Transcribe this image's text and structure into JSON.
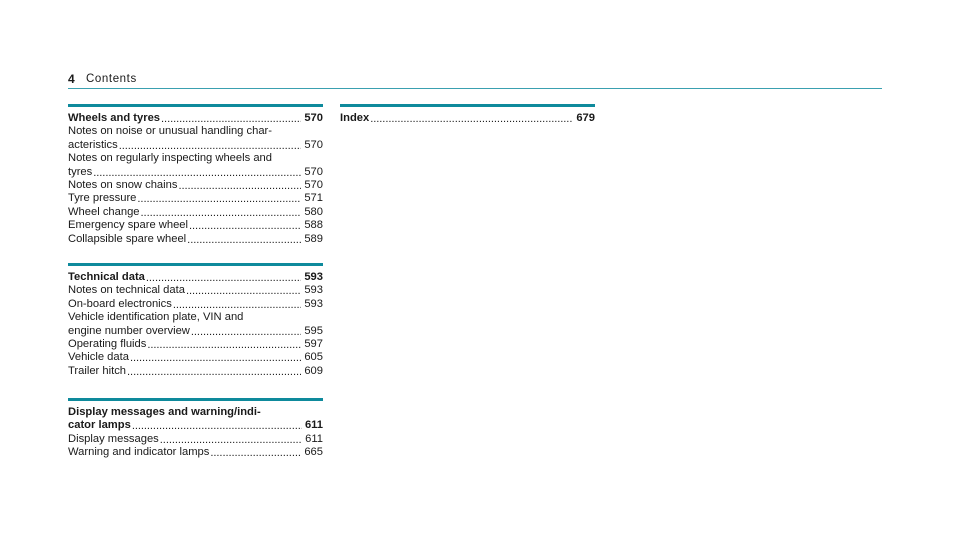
{
  "header": {
    "page_number": "4",
    "title": "Contents"
  },
  "sections": [
    {
      "heading_lines": [],
      "heading_last": "Wheels and tyres",
      "heading_page": "570",
      "entries": [
        {
          "lines": [
            "Notes on noise or unusual handling char-"
          ],
          "last": "acteristics",
          "page": "570"
        },
        {
          "lines": [
            "Notes on regularly inspecting wheels and"
          ],
          "last": "tyres",
          "page": "570"
        },
        {
          "lines": [],
          "last": "Notes on snow chains",
          "page": "570"
        },
        {
          "lines": [],
          "last": "Tyre pressure",
          "page": "571"
        },
        {
          "lines": [],
          "last": "Wheel change",
          "page": "580"
        },
        {
          "lines": [],
          "last": "Emergency spare wheel",
          "page": "588"
        },
        {
          "lines": [],
          "last": "Collapsible spare wheel",
          "page": "589"
        }
      ]
    },
    {
      "heading_lines": [],
      "heading_last": "Technical data",
      "heading_page": "593",
      "entries": [
        {
          "lines": [],
          "last": "Notes on technical data",
          "page": "593"
        },
        {
          "lines": [],
          "last": "On-board electronics",
          "page": "593"
        },
        {
          "lines": [
            "Vehicle identification plate, VIN and"
          ],
          "last": "engine number overview",
          "page": "595"
        },
        {
          "lines": [],
          "last": "Operating fluids",
          "page": "597"
        },
        {
          "lines": [],
          "last": "Vehicle data",
          "page": "605"
        },
        {
          "lines": [],
          "last": "Trailer hitch",
          "page": "609"
        }
      ]
    },
    {
      "heading_lines": [
        "Display messages and warning/indi-"
      ],
      "heading_last": "cator lamps",
      "heading_page": "611",
      "entries": [
        {
          "lines": [],
          "last": "Display messages",
          "page": "611"
        },
        {
          "lines": [],
          "last": "Warning and indicator lamps",
          "page": "665"
        }
      ]
    },
    {
      "heading_lines": [],
      "heading_last": "Index",
      "heading_page": "679",
      "entries": []
    }
  ]
}
